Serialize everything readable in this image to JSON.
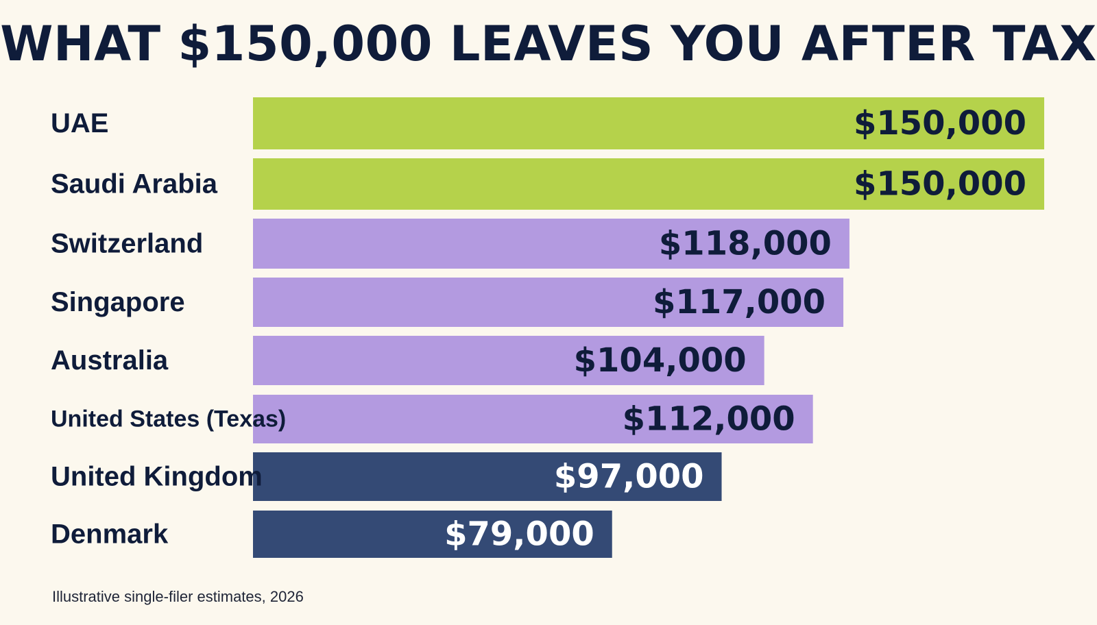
{
  "chart_data": {
    "type": "bar",
    "orientation": "horizontal",
    "title": "WHAT $150,000 LEAVES YOU AFTER TAX",
    "categories": [
      "UAE",
      "Saudi Arabia",
      "Switzerland",
      "Singapore",
      "Australia",
      "United States (Texas)",
      "United Kingdom",
      "Denmark"
    ],
    "values": [
      150000,
      150000,
      118000,
      117000,
      104000,
      112000,
      97000,
      79000
    ],
    "value_labels": [
      "$150,000",
      "$150,000",
      "$118,000",
      "$117,000",
      "$104,000",
      "$112,000",
      "$97,000",
      "$79,000"
    ],
    "bar_colors": [
      "#b5d24b",
      "#b5d24b",
      "#b39ae0",
      "#b39ae0",
      "#b39ae0",
      "#b39ae0",
      "#344a75",
      "#344a75"
    ],
    "label_colors": [
      "#0f1c3a",
      "#0f1c3a",
      "#0f1c3a",
      "#0f1c3a",
      "#0f1c3a",
      "#0f1c3a",
      "#ffffff",
      "#ffffff"
    ],
    "xlim": [
      20000,
      150000
    ],
    "legend": "none",
    "grid": false,
    "xlabel": "",
    "ylabel": ""
  },
  "footnote": "Illustrative single-filer estimates, 2026",
  "colors": {
    "background": "#fcf8ee",
    "title_text": "#0f1c3a"
  }
}
